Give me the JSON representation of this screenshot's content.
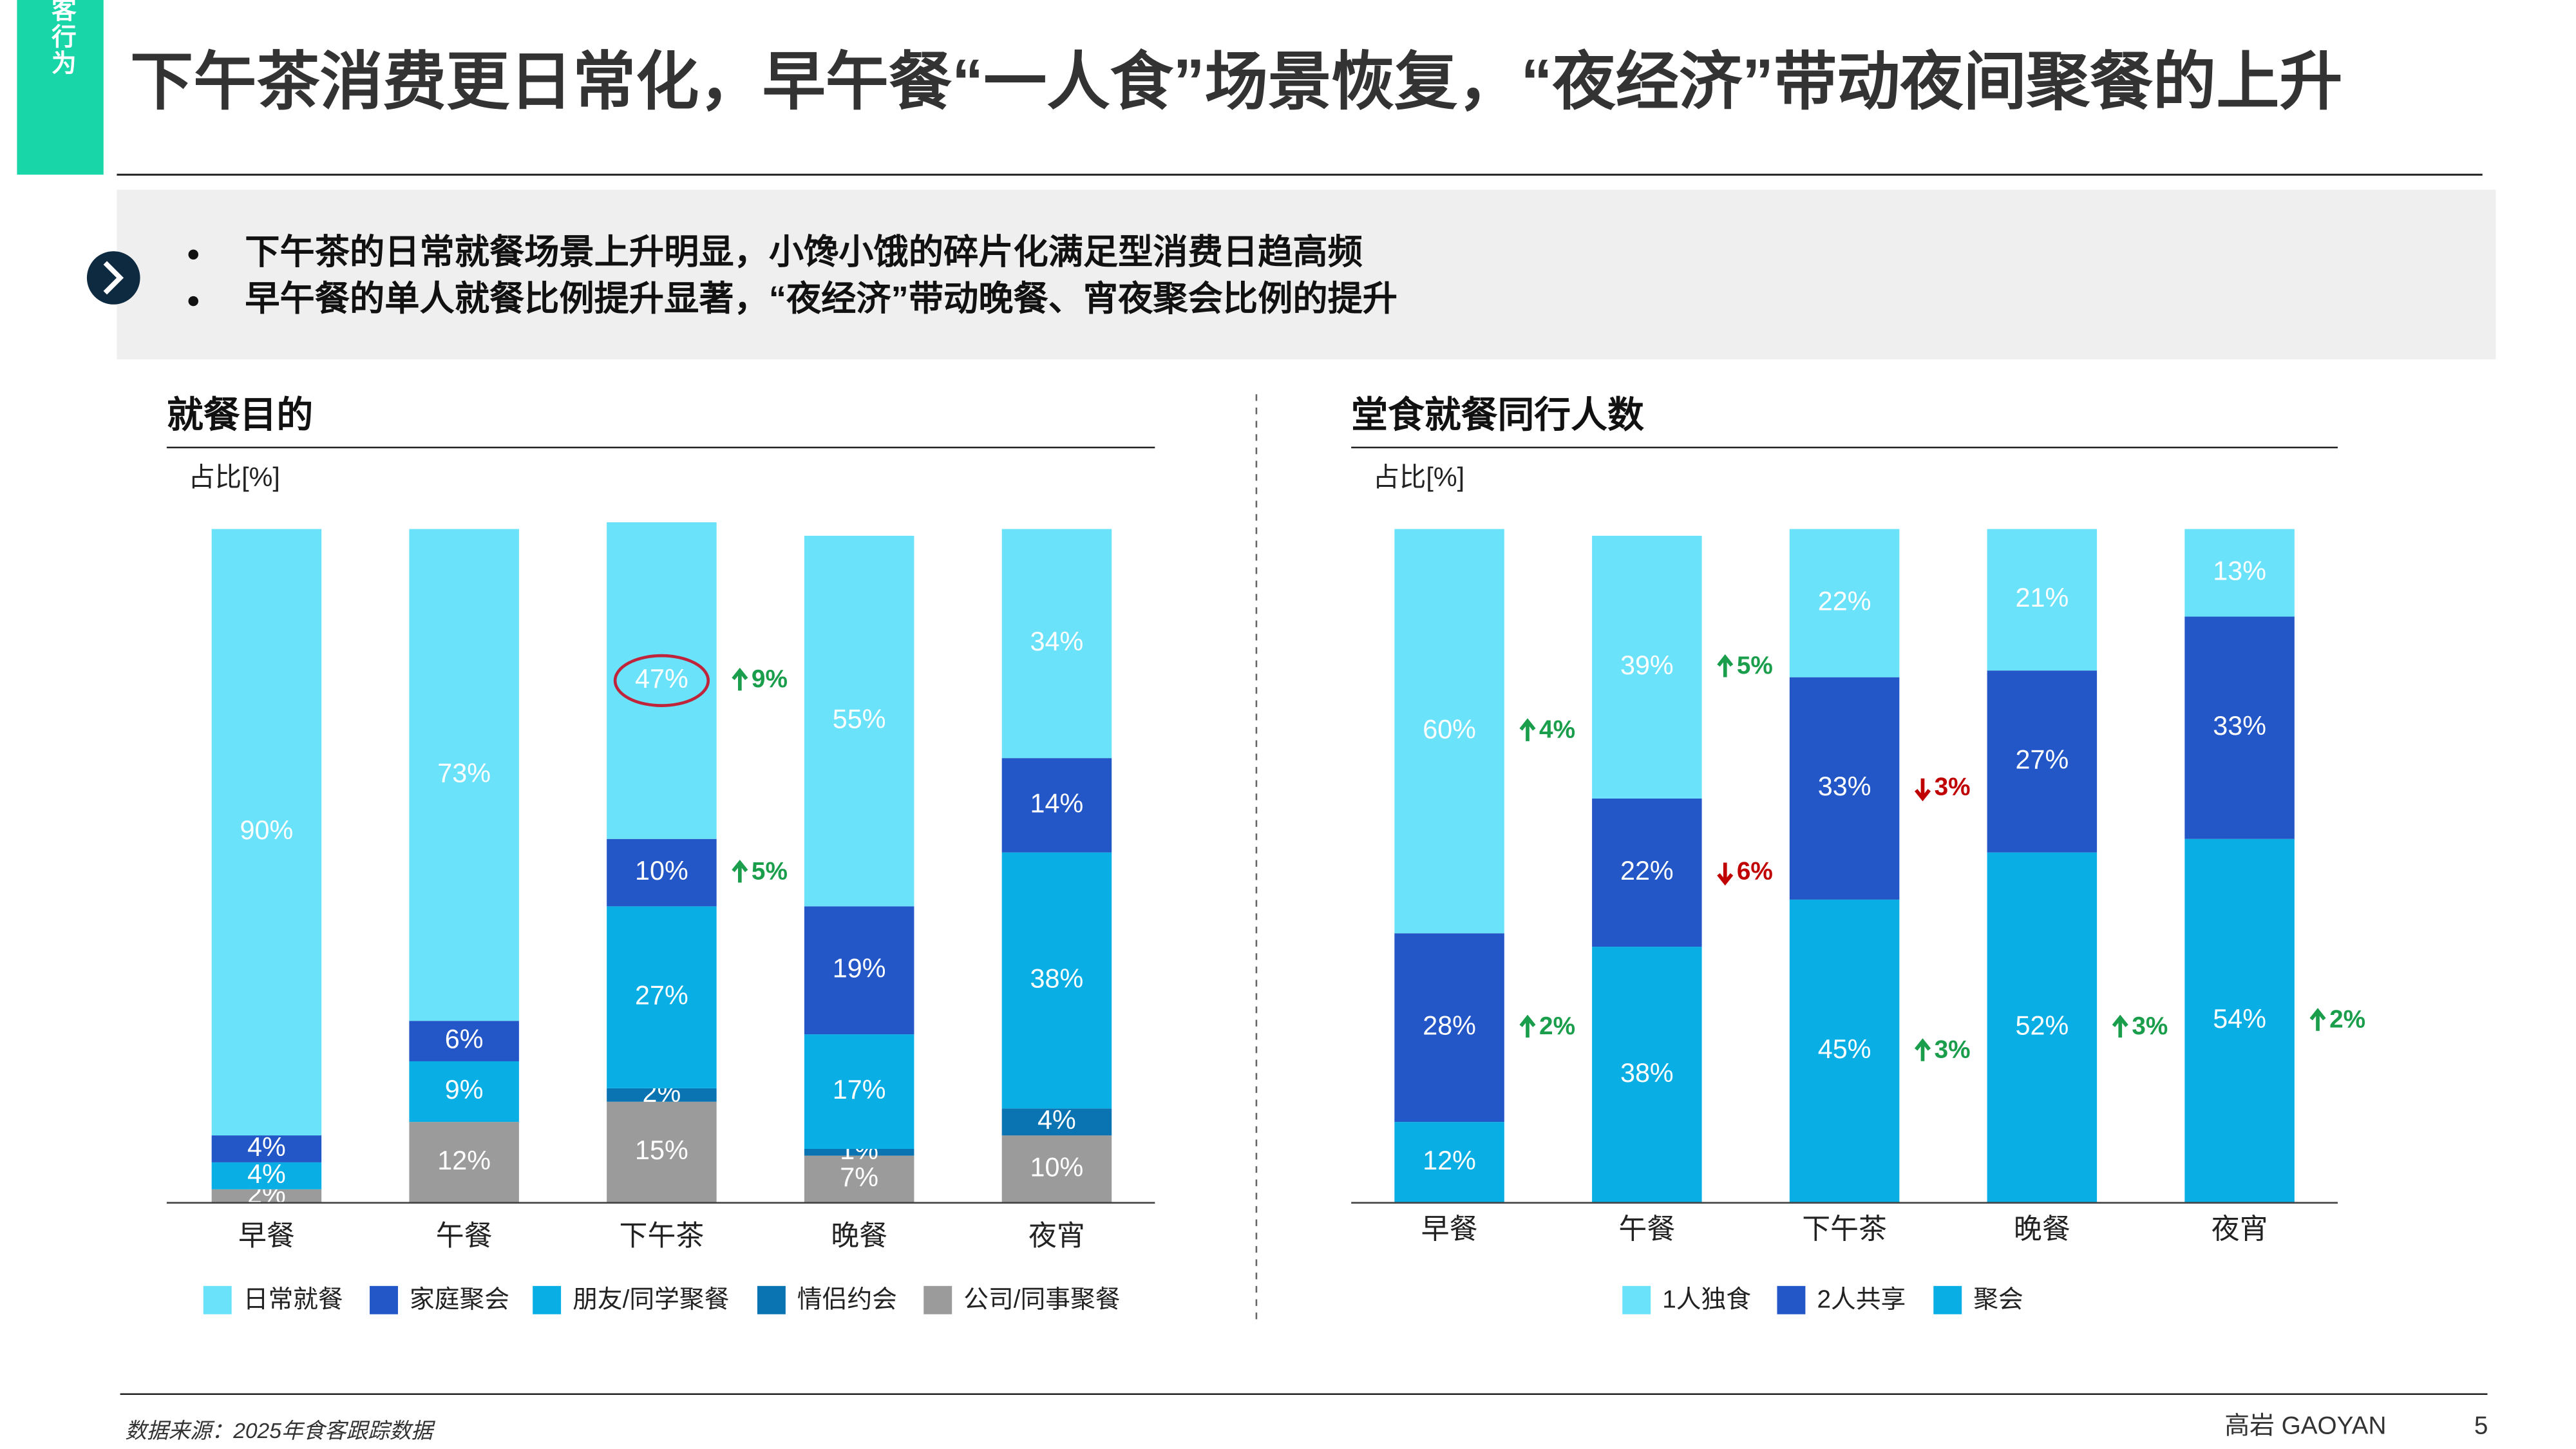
{
  "header": {
    "tag": "食客行为",
    "title": "下午茶消费更日常化，早午餐“一人食”场景恢复，“夜经济”带动夜间聚餐的上升"
  },
  "summary": {
    "bullets": [
      "下午茶的日常就餐场景上升明显，小馋小饿的碎片化满足型消费日趋高频",
      "早午餐的单人就餐比例提升显著，“夜经济”带动晚餐、宵夜聚会比例的提升"
    ]
  },
  "chart_data": [
    {
      "type": "bar",
      "stacked": true,
      "title": "就餐目的",
      "y_label": "占比[%]",
      "categories": [
        "早餐",
        "午餐",
        "下午茶",
        "晚餐",
        "夜宵"
      ],
      "ylim": [
        0,
        100
      ],
      "series": [
        {
          "name": "日常就餐",
          "color": "#6ae2fa",
          "values": [
            90,
            73,
            47,
            55,
            34
          ],
          "value_labels": [
            "90%",
            "73%",
            "47%",
            "55%",
            "34%"
          ]
        },
        {
          "name": "家庭聚会",
          "color": "#2356c6",
          "values": [
            4,
            6,
            10,
            19,
            14
          ],
          "value_labels": [
            "4%",
            "6%",
            "10%",
            "19%",
            "14%"
          ]
        },
        {
          "name": "朋友/同学聚餐",
          "color": "#08aee4",
          "values": [
            4,
            9,
            27,
            17,
            38
          ],
          "value_labels": [
            "4%",
            "9%",
            "27%",
            "17%",
            "38%"
          ]
        },
        {
          "name": "情侣约会",
          "color": "#0a74b2",
          "values": [
            null,
            null,
            2,
            1,
            4
          ],
          "value_labels": [
            null,
            null,
            "2%",
            "1%",
            "4%"
          ]
        },
        {
          "name": "公司/同事聚餐",
          "color": "#9b9b9b",
          "values": [
            2,
            12,
            15,
            7,
            10
          ],
          "value_labels": [
            "2%",
            "12%",
            "15%",
            "7%",
            "10%"
          ]
        }
      ],
      "annotations": [
        {
          "category": 2,
          "series": 0,
          "change": 9,
          "label": "9%"
        },
        {
          "category": 2,
          "series": 1,
          "change": 5,
          "label": "5%"
        }
      ],
      "highlight": {
        "category": 2,
        "series": 0
      }
    },
    {
      "type": "bar",
      "stacked": true,
      "title": "堂食就餐同行人数",
      "y_label": "占比[%]",
      "categories": [
        "早餐",
        "午餐",
        "下午茶",
        "晚餐",
        "夜宵"
      ],
      "ylim": [
        0,
        100
      ],
      "series": [
        {
          "name": "1人独食",
          "color": "#6ae2fa",
          "values": [
            60,
            39,
            22,
            21,
            13
          ],
          "value_labels": [
            "60%",
            "39%",
            "22%",
            "21%",
            "13%"
          ]
        },
        {
          "name": "2人共享",
          "color": "#2356c6",
          "values": [
            28,
            22,
            33,
            27,
            33
          ],
          "value_labels": [
            "28%",
            "22%",
            "33%",
            "27%",
            "33%"
          ]
        },
        {
          "name": "聚会",
          "color": "#08aee4",
          "values": [
            12,
            38,
            45,
            52,
            54
          ],
          "value_labels": [
            "12%",
            "38%",
            "45%",
            "52%",
            "54%"
          ]
        }
      ],
      "annotations": [
        {
          "category": 0,
          "series": 0,
          "change": 4,
          "label": "4%"
        },
        {
          "category": 0,
          "series": 1,
          "change": 2,
          "label": "2%"
        },
        {
          "category": 1,
          "series": 0,
          "change": 5,
          "label": "5%"
        },
        {
          "category": 1,
          "series": 1,
          "change": -6,
          "label": "6%"
        },
        {
          "category": 2,
          "series": 1,
          "change": -3,
          "label": "3%"
        },
        {
          "category": 2,
          "series": 2,
          "change": 3,
          "label": "3%"
        },
        {
          "category": 3,
          "series": 2,
          "change": 3,
          "label": "3%"
        },
        {
          "category": 4,
          "series": 2,
          "change": 2,
          "label": "2%"
        }
      ]
    }
  ],
  "footer": {
    "source": "数据来源：2025年食客跟踪数据",
    "brand": "高岩 GAOYAN",
    "page": "5"
  }
}
